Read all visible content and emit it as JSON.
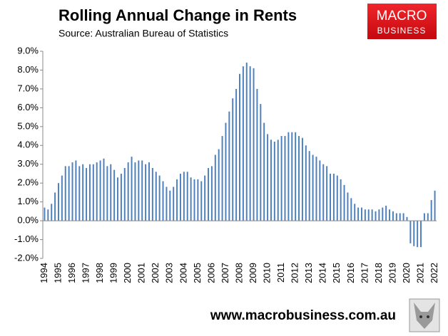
{
  "chart_data": {
    "type": "bar",
    "title": "Rolling Annual Change in Rents",
    "subtitle": "Source: Australian Bureau of Statistics",
    "categories": [
      "1994",
      null,
      null,
      null,
      "1995",
      null,
      null,
      null,
      "1996",
      null,
      null,
      null,
      "1997",
      null,
      null,
      null,
      "1998",
      null,
      null,
      null,
      "1999",
      null,
      null,
      null,
      "2000",
      null,
      null,
      null,
      "2001",
      null,
      null,
      null,
      "2002",
      null,
      null,
      null,
      "2003",
      null,
      null,
      null,
      "2004",
      null,
      null,
      null,
      "2005",
      null,
      null,
      null,
      "2006",
      null,
      null,
      null,
      "2007",
      null,
      null,
      null,
      "2008",
      null,
      null,
      null,
      "2009",
      null,
      null,
      null,
      "2010",
      null,
      null,
      null,
      "2011",
      null,
      null,
      null,
      "2012",
      null,
      null,
      null,
      "2013",
      null,
      null,
      null,
      "2014",
      null,
      null,
      null,
      "2015",
      null,
      null,
      null,
      "2016",
      null,
      null,
      null,
      "2017",
      null,
      null,
      null,
      "2018",
      null,
      null,
      null,
      "2019",
      null,
      null,
      null,
      "2020",
      null,
      null,
      null,
      "2021",
      null,
      null,
      null,
      "2022"
    ],
    "values": [
      0.7,
      0.6,
      0.9,
      1.5,
      2.0,
      2.4,
      2.9,
      2.9,
      3.1,
      3.2,
      2.9,
      3.0,
      2.8,
      3.0,
      3.0,
      3.1,
      3.2,
      3.3,
      2.9,
      3.0,
      2.7,
      2.3,
      2.5,
      2.8,
      3.1,
      3.4,
      3.1,
      3.2,
      3.2,
      3.0,
      3.1,
      2.8,
      2.6,
      2.4,
      2.1,
      1.8,
      1.6,
      1.8,
      2.2,
      2.5,
      2.6,
      2.6,
      2.3,
      2.2,
      2.2,
      2.1,
      2.4,
      2.8,
      2.9,
      3.5,
      3.8,
      4.5,
      5.2,
      5.8,
      6.5,
      7.0,
      7.8,
      8.2,
      8.4,
      8.2,
      8.1,
      7.0,
      6.2,
      5.2,
      4.6,
      4.3,
      4.2,
      4.3,
      4.5,
      4.5,
      4.7,
      4.7,
      4.7,
      4.5,
      4.4,
      4.0,
      3.7,
      3.5,
      3.4,
      3.2,
      3.0,
      2.9,
      2.5,
      2.5,
      2.4,
      2.2,
      1.9,
      1.5,
      1.2,
      0.9,
      0.7,
      0.7,
      0.6,
      0.6,
      0.6,
      0.5,
      0.6,
      0.7,
      0.8,
      0.6,
      0.5,
      0.4,
      0.4,
      0.4,
      0.2,
      -1.2,
      -1.35,
      -1.4,
      -1.4,
      0.4,
      0.4,
      1.1,
      1.6
    ],
    "color": "#4f81bd",
    "ylim": [
      -2,
      9
    ],
    "yticks": [
      {
        "value": -2,
        "label": "-2.0%"
      },
      {
        "value": -1,
        "label": "-1.0%"
      },
      {
        "value": 0,
        "label": "0.0%"
      },
      {
        "value": 1,
        "label": "1.0%"
      },
      {
        "value": 2,
        "label": "2.0%"
      },
      {
        "value": 3,
        "label": "3.0%"
      },
      {
        "value": 4,
        "label": "4.0%"
      },
      {
        "value": 5,
        "label": "5.0%"
      },
      {
        "value": 6,
        "label": "6.0%"
      },
      {
        "value": 7,
        "label": "7.0%"
      },
      {
        "value": 8,
        "label": "8.0%"
      },
      {
        "value": 9,
        "label": "9.0%"
      }
    ],
    "grid": false
  },
  "branding": {
    "logo_top": "MACRO",
    "logo_bottom": "BUSINESS",
    "url": "www.macrobusiness.com.au"
  }
}
